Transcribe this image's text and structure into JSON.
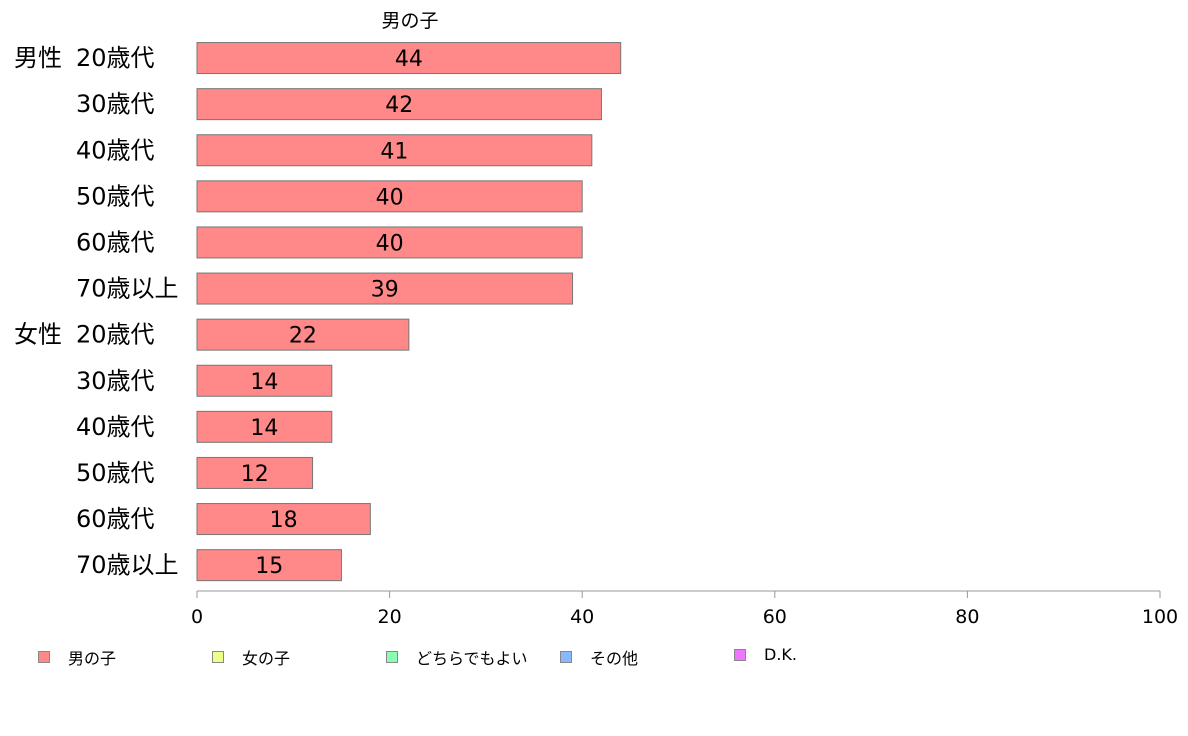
{
  "chart_data": {
    "type": "bar",
    "orientation": "horizontal",
    "title": "男の子",
    "group_labels": [
      "男性",
      "女性"
    ],
    "categories": [
      "20歳代",
      "30歳代",
      "40歳代",
      "50歳代",
      "60歳代",
      "70歳以上",
      "20歳代",
      "30歳代",
      "40歳代",
      "50歳代",
      "60歳代",
      "70歳以上"
    ],
    "series": [
      {
        "name": "男の子",
        "color": "#ff8888",
        "values": [
          44,
          42,
          41,
          40,
          40,
          39,
          22,
          14,
          14,
          12,
          18,
          15
        ]
      }
    ],
    "xlim": [
      0,
      100
    ],
    "xticks": [
      "0",
      "20",
      "40",
      "60",
      "80",
      "100"
    ],
    "grid": false,
    "legend": {
      "placement": "bottom",
      "items": [
        {
          "label": "男の子",
          "color": "#ff8888"
        },
        {
          "label": "女の子",
          "color": "#efff88"
        },
        {
          "label": "どちらでもよい",
          "color": "#88ffb0"
        },
        {
          "label": "その他",
          "color": "#88b8ff"
        },
        {
          "label": "D.K.",
          "color": "#ee77ff"
        }
      ]
    }
  }
}
